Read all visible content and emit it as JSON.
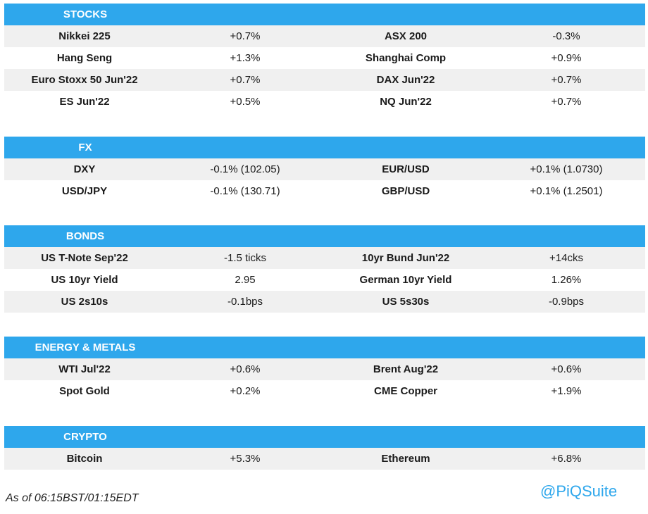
{
  "sections": [
    {
      "title": "STOCKS",
      "rows": [
        {
          "name1": "Nikkei 225",
          "val1": "+0.7%",
          "name2": "ASX 200",
          "val2": "-0.3%"
        },
        {
          "name1": "Hang Seng",
          "val1": "+1.3%",
          "name2": "Shanghai Comp",
          "val2": "+0.9%"
        },
        {
          "name1": "Euro Stoxx 50 Jun'22",
          "val1": "+0.7%",
          "name2": "DAX Jun'22",
          "val2": "+0.7%"
        },
        {
          "name1": "ES Jun'22",
          "val1": "+0.5%",
          "name2": "NQ Jun'22",
          "val2": "+0.7%"
        }
      ]
    },
    {
      "title": "FX",
      "rows": [
        {
          "name1": "DXY",
          "val1": "-0.1% (102.05)",
          "name2": "EUR/USD",
          "val2": "+0.1% (1.0730)"
        },
        {
          "name1": "USD/JPY",
          "val1": "-0.1% (130.71)",
          "name2": "GBP/USD",
          "val2": "+0.1% (1.2501)"
        }
      ]
    },
    {
      "title": "BONDS",
      "rows": [
        {
          "name1": "US T-Note Sep'22",
          "val1": "-1.5 ticks",
          "name2": "10yr Bund Jun'22",
          "val2": "+14cks"
        },
        {
          "name1": "US 10yr Yield",
          "val1": "2.95",
          "name2": "German 10yr Yield",
          "val2": "1.26%"
        },
        {
          "name1": "US 2s10s",
          "val1": "-0.1bps",
          "name2": "US 5s30s",
          "val2": "-0.9bps"
        }
      ]
    },
    {
      "title": "ENERGY & METALS",
      "rows": [
        {
          "name1": "WTI Jul'22",
          "val1": "+0.6%",
          "name2": "Brent Aug'22",
          "val2": "+0.6%"
        },
        {
          "name1": "Spot Gold",
          "val1": "+0.2%",
          "name2": "CME Copper",
          "val2": "+1.9%"
        }
      ]
    },
    {
      "title": "CRYPTO",
      "rows": [
        {
          "name1": "Bitcoin",
          "val1": "+5.3%",
          "name2": "Ethereum",
          "val2": "+6.8%"
        }
      ]
    }
  ],
  "footer": {
    "timestamp": "As of 06:15BST/01:15EDT",
    "handle": "@PiQSuite"
  }
}
